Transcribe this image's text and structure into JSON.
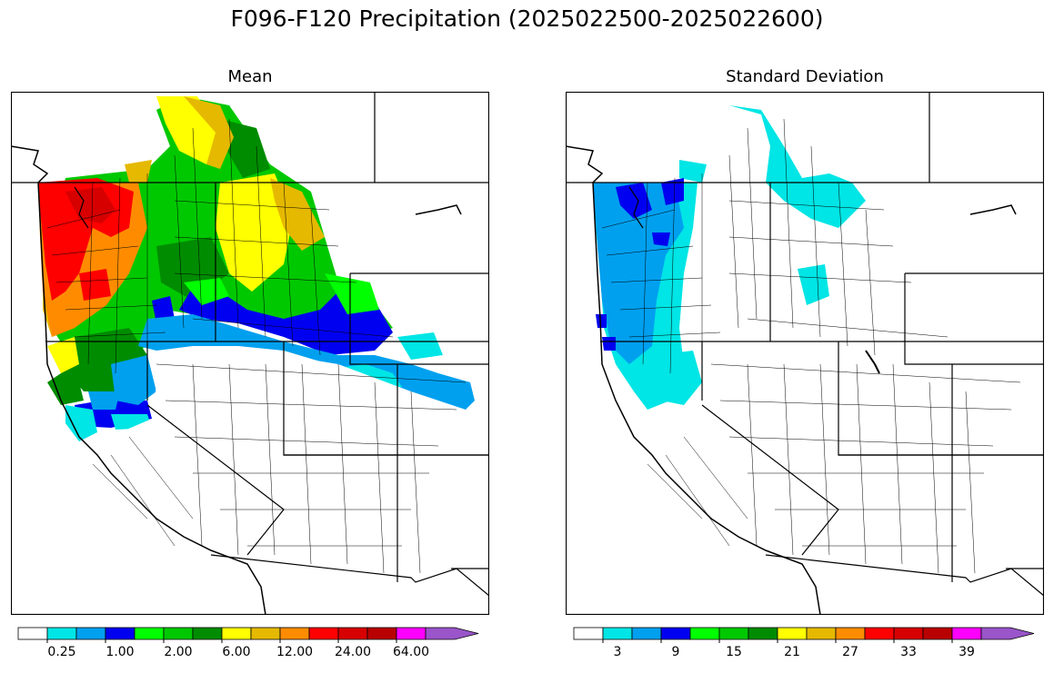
{
  "title": "F096-F120 Precipitation (2025022500-2025022600)",
  "panels": [
    {
      "title": "Mean"
    },
    {
      "title": "Standard Deviation"
    }
  ],
  "colorbar_colors": [
    "#ffffff",
    "#00e5e5",
    "#00a0ef",
    "#0000f0",
    "#00ff00",
    "#00c800",
    "#008c00",
    "#ffff00",
    "#e5b900",
    "#ff8c00",
    "#ff0000",
    "#d70000",
    "#b90000",
    "#ff00ff",
    "#9955c9"
  ],
  "colorbars": [
    {
      "ticks": [
        "0.25",
        "1.00",
        "2.00",
        "6.00",
        "12.00",
        "24.00",
        "64.00"
      ],
      "tick_bins": [
        1,
        3,
        5,
        7,
        9,
        11,
        13
      ]
    },
    {
      "ticks": [
        "3",
        "9",
        "15",
        "21",
        "27",
        "33",
        "39"
      ],
      "tick_bins": [
        1,
        3,
        5,
        7,
        9,
        11,
        13
      ]
    }
  ],
  "map": {
    "type": "basin precipitation choropleth",
    "region": "Western United States river basins",
    "mean_pattern": "heaviest (red, 24-64) along coastal Pacific Northwest; yellow/green inland Idaho-Montana; blue/cyan band across southern Oregon and Idaho; no precipitation (white) across Nevada, Utah, California south of the north coast and the Southwest",
    "stddev_pattern": "highest (blue) over coastal Washington and Oregon; cyan over northern Idaho-Montana and along the coast; white elsewhere"
  }
}
